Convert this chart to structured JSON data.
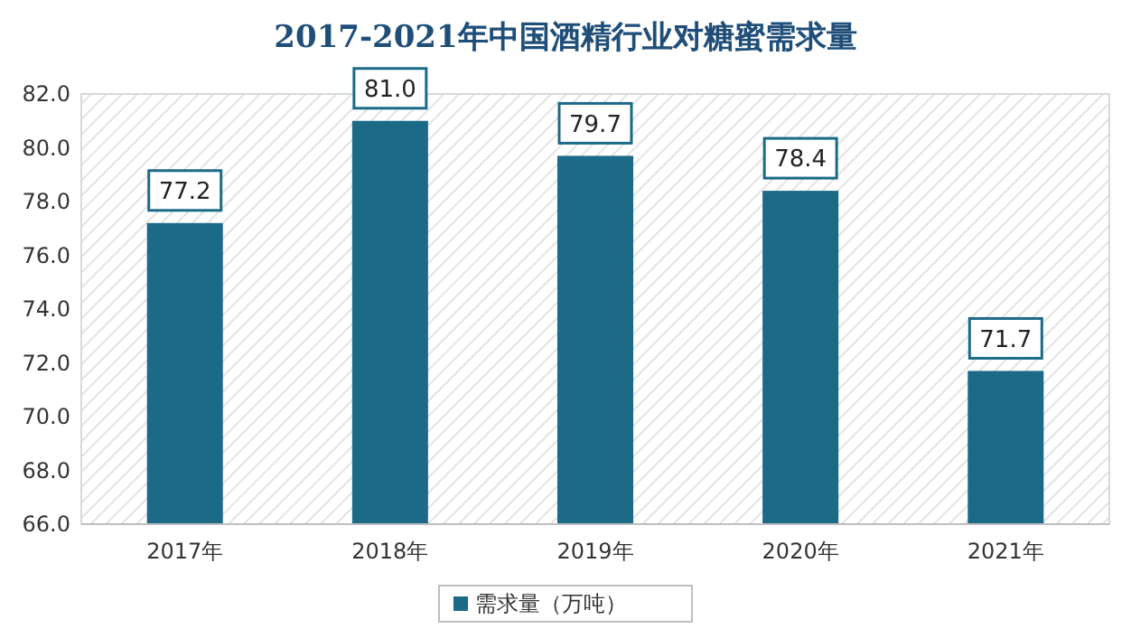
{
  "chart_data": {
    "type": "bar",
    "title": "2017-2021年中国酒精行业对糖蜜需求量",
    "categories": [
      "2017年",
      "2018年",
      "2019年",
      "2020年",
      "2021年"
    ],
    "series": [
      {
        "name": "需求量（万吨）",
        "color": "#1b6a87",
        "values": [
          77.2,
          81.0,
          79.7,
          78.4,
          71.7
        ]
      }
    ],
    "value_labels": [
      "77.2",
      "81.0",
      "79.7",
      "78.4",
      "71.7"
    ],
    "ylim": [
      66,
      82
    ],
    "yticks": [
      {
        "value": 66,
        "label": "66.0"
      },
      {
        "value": 68,
        "label": "68.0"
      },
      {
        "value": 70,
        "label": "70.0"
      },
      {
        "value": 72,
        "label": "72.0"
      },
      {
        "value": 74,
        "label": "74.0"
      },
      {
        "value": 76,
        "label": "76.0"
      },
      {
        "value": 78,
        "label": "78.0"
      },
      {
        "value": 80,
        "label": "80.0"
      },
      {
        "value": 82,
        "label": "82.0"
      }
    ],
    "grid": false,
    "legend": "bottom"
  }
}
